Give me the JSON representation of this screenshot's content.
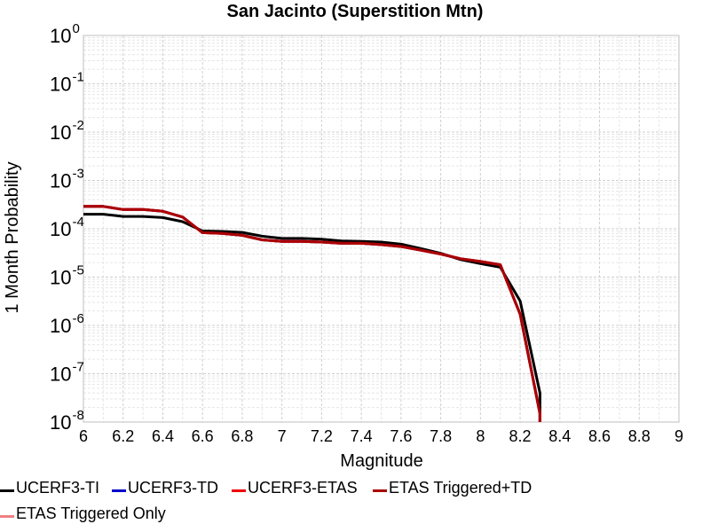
{
  "chart_data": {
    "type": "line",
    "title": "San Jacinto (Superstition Mtn)",
    "xlabel": "Magnitude",
    "ylabel": "1 Month Probability",
    "xlim": [
      6,
      9
    ],
    "ylim": [
      1e-08,
      1
    ],
    "yscale": "log",
    "grid": true,
    "legend_position": "bottom",
    "x_ticks": [
      "6",
      "6.2",
      "6.4",
      "6.6",
      "6.8",
      "7",
      "7.2",
      "7.4",
      "7.6",
      "7.8",
      "8",
      "8.2",
      "8.4",
      "8.6",
      "8.8",
      "9"
    ],
    "y_ticks": [
      {
        "base": "10",
        "exp": "0"
      },
      {
        "base": "10",
        "exp": "-1"
      },
      {
        "base": "10",
        "exp": "-2"
      },
      {
        "base": "10",
        "exp": "-3"
      },
      {
        "base": "10",
        "exp": "-4"
      },
      {
        "base": "10",
        "exp": "-5"
      },
      {
        "base": "10",
        "exp": "-6"
      },
      {
        "base": "10",
        "exp": "-7"
      },
      {
        "base": "10",
        "exp": "-8"
      }
    ],
    "series": [
      {
        "name": "UCERF3-TI",
        "color": "#000000",
        "x": [
          6.0,
          6.1,
          6.2,
          6.3,
          6.4,
          6.5,
          6.6,
          6.7,
          6.8,
          6.9,
          7.0,
          7.1,
          7.2,
          7.3,
          7.4,
          7.5,
          7.6,
          7.7,
          7.8,
          7.9,
          8.0,
          8.1,
          8.2,
          8.3,
          8.3
        ],
        "y": [
          0.0002,
          0.0002,
          0.00018,
          0.00018,
          0.00017,
          0.00014,
          9e-05,
          8.8e-05,
          8.4e-05,
          7e-05,
          6.3e-05,
          6.3e-05,
          6.1e-05,
          5.6e-05,
          5.5e-05,
          5.3e-05,
          4.8e-05,
          3.9e-05,
          3.1e-05,
          2.3e-05,
          1.9e-05,
          1.6e-05,
          3.2e-06,
          4e-08,
          1e-08
        ]
      },
      {
        "name": "UCERF3-TD",
        "color": "#0000cc",
        "x": [
          6.0,
          6.1,
          6.2,
          6.3,
          6.4,
          6.5,
          6.6,
          6.7,
          6.8,
          6.9,
          7.0,
          7.1,
          7.2,
          7.3,
          7.4,
          7.5,
          7.6,
          7.7,
          7.8,
          7.9,
          8.0,
          8.1,
          8.2,
          8.3,
          8.3
        ],
        "y": [
          0.00029,
          0.00029,
          0.00025,
          0.00025,
          0.00023,
          0.000175,
          8.3e-05,
          8e-05,
          7.3e-05,
          5.9e-05,
          5.5e-05,
          5.5e-05,
          5.3e-05,
          5e-05,
          5e-05,
          4.7e-05,
          4.3e-05,
          3.6e-05,
          3e-05,
          2.4e-05,
          2.1e-05,
          1.8e-05,
          1.7e-06,
          1.5e-08,
          1e-08
        ]
      },
      {
        "name": "UCERF3-ETAS",
        "color": "#ee0000",
        "x": [
          6.0,
          6.1,
          6.2,
          6.3,
          6.4,
          6.5,
          6.6,
          6.7,
          6.8,
          6.9,
          7.0,
          7.1,
          7.2,
          7.3,
          7.4,
          7.5,
          7.6,
          7.7,
          7.8,
          7.9,
          8.0,
          8.1,
          8.2,
          8.3,
          8.3
        ],
        "y": [
          0.00029,
          0.00029,
          0.00025,
          0.00025,
          0.00023,
          0.000175,
          8.3e-05,
          8e-05,
          7.3e-05,
          5.9e-05,
          5.5e-05,
          5.5e-05,
          5.3e-05,
          5e-05,
          5e-05,
          4.7e-05,
          4.3e-05,
          3.6e-05,
          3e-05,
          2.4e-05,
          2.1e-05,
          1.8e-05,
          1.7e-06,
          1.5e-08,
          1e-08
        ]
      },
      {
        "name": "ETAS Triggered+TD",
        "color": "#aa0000",
        "x": [
          6.0,
          6.1,
          6.2,
          6.3,
          6.4,
          6.5,
          6.6,
          6.7,
          6.8,
          6.9,
          7.0,
          7.1,
          7.2,
          7.3,
          7.4,
          7.5,
          7.6,
          7.7,
          7.8,
          7.9,
          8.0,
          8.1,
          8.2,
          8.3,
          8.3
        ],
        "y": [
          0.00029,
          0.00029,
          0.00025,
          0.00025,
          0.00023,
          0.000175,
          8.3e-05,
          8e-05,
          7.3e-05,
          5.9e-05,
          5.5e-05,
          5.5e-05,
          5.3e-05,
          5e-05,
          5e-05,
          4.7e-05,
          4.3e-05,
          3.6e-05,
          3e-05,
          2.4e-05,
          2.1e-05,
          1.8e-05,
          1.7e-06,
          1.5e-08,
          1e-08
        ]
      },
      {
        "name": "ETAS Triggered Only",
        "color": "#f08080",
        "x": [],
        "y": []
      }
    ]
  }
}
